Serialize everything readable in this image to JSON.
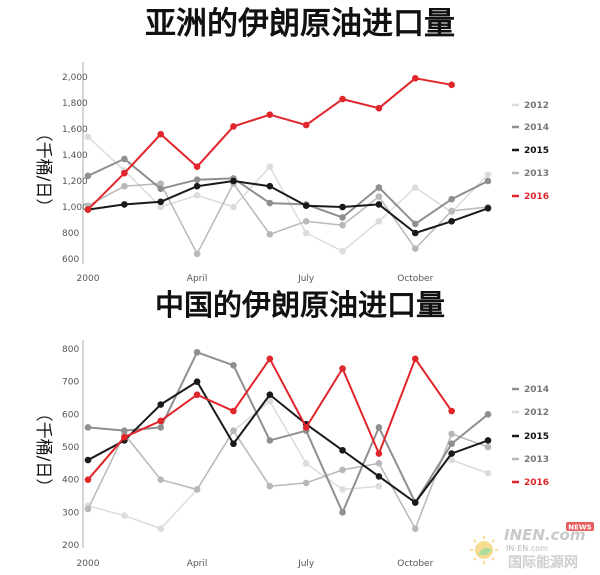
{
  "chart_data": [
    {
      "type": "line",
      "title": "亚洲的伊朗原油进口量",
      "ylabel": "（千桶/日）",
      "ylim": [
        600,
        2100
      ],
      "yticks": [
        600,
        800,
        1000,
        1200,
        1400,
        1600,
        1800,
        2000
      ],
      "ytick_labels": [
        "600",
        "800",
        "1,000",
        "1,200",
        "1,400",
        "1,600",
        "1,800",
        "2,000"
      ],
      "x_months": [
        1,
        2,
        3,
        4,
        5,
        6,
        7,
        8,
        9,
        10,
        11,
        12
      ],
      "xtick_labels": [
        {
          "month": 1,
          "label": "2000"
        },
        {
          "month": 4,
          "label": "April"
        },
        {
          "month": 7,
          "label": "July"
        },
        {
          "month": 10,
          "label": "October"
        }
      ],
      "grid": false,
      "legend_position": "right",
      "legend": [
        "2012",
        "2014",
        "2015",
        "2013",
        "2016"
      ],
      "series": [
        {
          "name": "2012",
          "color": "#dcdcdc",
          "width": 1.5,
          "values": [
            1540,
            1280,
            1000,
            1090,
            1000,
            1310,
            800,
            660,
            890,
            1150,
            960,
            1250
          ]
        },
        {
          "name": "2013",
          "color": "#b8b8b8",
          "width": 1.5,
          "values": [
            1010,
            1160,
            1180,
            640,
            1180,
            790,
            890,
            860,
            1080,
            680,
            970,
            1000
          ]
        },
        {
          "name": "2014",
          "color": "#8f8f8f",
          "width": 2,
          "values": [
            1240,
            1370,
            1140,
            1210,
            1220,
            1030,
            1020,
            920,
            1150,
            870,
            1060,
            1200
          ]
        },
        {
          "name": "2015",
          "color": "#1a1a1a",
          "width": 2,
          "values": [
            980,
            1020,
            1040,
            1160,
            1200,
            1160,
            1010,
            1000,
            1020,
            800,
            890,
            990
          ]
        },
        {
          "name": "2016",
          "color": "#e0252b",
          "width": 2,
          "values": [
            980,
            1260,
            1560,
            1310,
            1620,
            1710,
            1630,
            1830,
            1760,
            1990,
            1940,
            null
          ]
        }
      ]
    },
    {
      "type": "line",
      "title": "中国的伊朗原油进口量",
      "ylabel": "（千桶/日）",
      "ylim": [
        200,
        800
      ],
      "yticks": [
        200,
        300,
        400,
        500,
        600,
        700,
        800
      ],
      "ytick_labels": [
        "200",
        "300",
        "400",
        "500",
        "600",
        "700",
        "800"
      ],
      "x_months": [
        1,
        2,
        3,
        4,
        5,
        6,
        7,
        8,
        9,
        10,
        11,
        12
      ],
      "xtick_labels": [
        {
          "month": 1,
          "label": "2000"
        },
        {
          "month": 4,
          "label": "April"
        },
        {
          "month": 7,
          "label": "July"
        },
        {
          "month": 10,
          "label": "October"
        }
      ],
      "grid": false,
      "legend_position": "right",
      "legend": [
        "2014",
        "2012",
        "2015",
        "2013",
        "2016"
      ],
      "series": [
        {
          "name": "2012",
          "color": "#dcdcdc",
          "width": 1.5,
          "values": [
            320,
            290,
            250,
            370,
            550,
            640,
            450,
            370,
            380,
            null,
            460,
            420
          ]
        },
        {
          "name": "2013",
          "color": "#b8b8b8",
          "width": 1.5,
          "values": [
            310,
            540,
            400,
            370,
            550,
            380,
            390,
            430,
            450,
            250,
            540,
            500
          ]
        },
        {
          "name": "2014",
          "color": "#8f8f8f",
          "width": 2,
          "values": [
            560,
            550,
            560,
            790,
            750,
            520,
            550,
            300,
            560,
            330,
            510,
            600
          ]
        },
        {
          "name": "2015",
          "color": "#1a1a1a",
          "width": 2,
          "values": [
            460,
            520,
            630,
            700,
            510,
            660,
            570,
            490,
            410,
            330,
            480,
            520
          ]
        },
        {
          "name": "2016",
          "color": "#e0252b",
          "width": 2,
          "values": [
            400,
            530,
            580,
            660,
            610,
            770,
            560,
            740,
            480,
            770,
            610,
            null
          ]
        }
      ]
    }
  ],
  "watermark": {
    "brand": "INEN.com",
    "badge": "NEWS",
    "sub": "IN-EN.com",
    "cn": "国际能源网",
    "accent": "#e0252b"
  }
}
